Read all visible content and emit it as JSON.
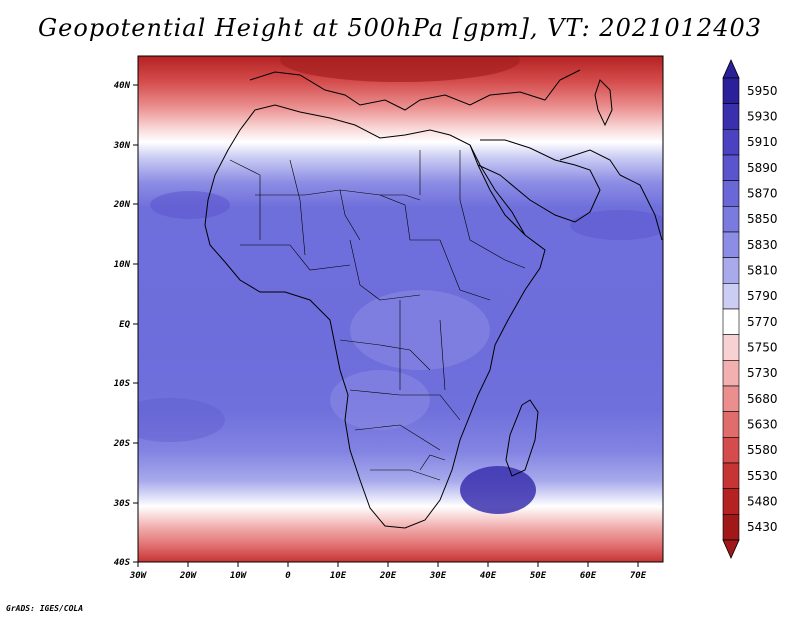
{
  "title": "Geopotential Height at 500hPa [gpm], VT: 2021012403",
  "credit": "GrADS: IGES/COLA",
  "map": {
    "projection": "latlon",
    "lon_range": [
      -30,
      75
    ],
    "lat_range": [
      -40,
      45
    ],
    "x_ticks": [
      "30W",
      "20W",
      "10W",
      "0",
      "10E",
      "20E",
      "30E",
      "40E",
      "50E",
      "60E",
      "70E"
    ],
    "y_ticks": [
      "40N",
      "30N",
      "20N",
      "10N",
      "EQ",
      "10S",
      "20S",
      "30S",
      "40S"
    ]
  },
  "colorbar": {
    "levels": [
      "5950",
      "5930",
      "5910",
      "5890",
      "5870",
      "5850",
      "5830",
      "5810",
      "5790",
      "5770",
      "5750",
      "5730",
      "5680",
      "5630",
      "5580",
      "5530",
      "5480",
      "5430"
    ],
    "colors": [
      "#2b1f9a",
      "#3a30ae",
      "#4a42c0",
      "#5a55cc",
      "#6a68d6",
      "#7b7ade",
      "#8c8de4",
      "#a8aaec",
      "#cbcdf4",
      "#ffffff",
      "#f8d2d2",
      "#f2b0b0",
      "#ea8e8e",
      "#e06c6c",
      "#d44c4c",
      "#c63434",
      "#b52222",
      "#a01818"
    ]
  },
  "colors": {
    "ocean_base": "#6f6fdc",
    "land": "#7c7ce3"
  }
}
